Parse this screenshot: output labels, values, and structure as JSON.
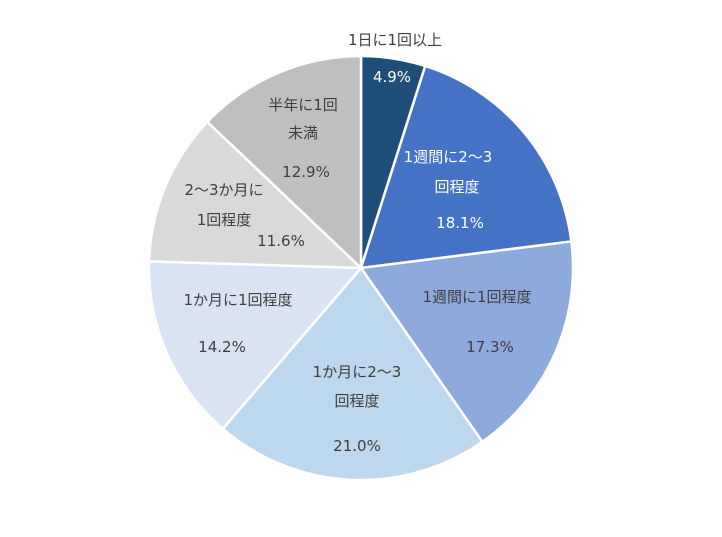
{
  "chart_data": {
    "type": "pie",
    "title": "",
    "slices": [
      {
        "label": "1日に1回以上",
        "value": 4.9,
        "value_label": "4.9%",
        "color": "#1F4E79"
      },
      {
        "label": "1週間に2～3回程度",
        "value": 18.1,
        "value_label": "18.1%",
        "color": "#4472C4"
      },
      {
        "label": "1週間に1回程度",
        "value": 17.3,
        "value_label": "17.3%",
        "color": "#8EA9DB"
      },
      {
        "label": "1か月に2～3回程度",
        "value": 21.0,
        "value_label": "21.0%",
        "color": "#BDD7EE"
      },
      {
        "label": "1か月に1回程度",
        "value": 14.2,
        "value_label": "14.2%",
        "color": "#DAE3F3"
      },
      {
        "label": "2～3か月に1回程度",
        "value": 11.6,
        "value_label": "11.6%",
        "color": "#D9D9D9"
      },
      {
        "label": "半年に1回未満",
        "value": 12.9,
        "value_label": "12.9%",
        "color": "#BFBFBF"
      }
    ]
  }
}
